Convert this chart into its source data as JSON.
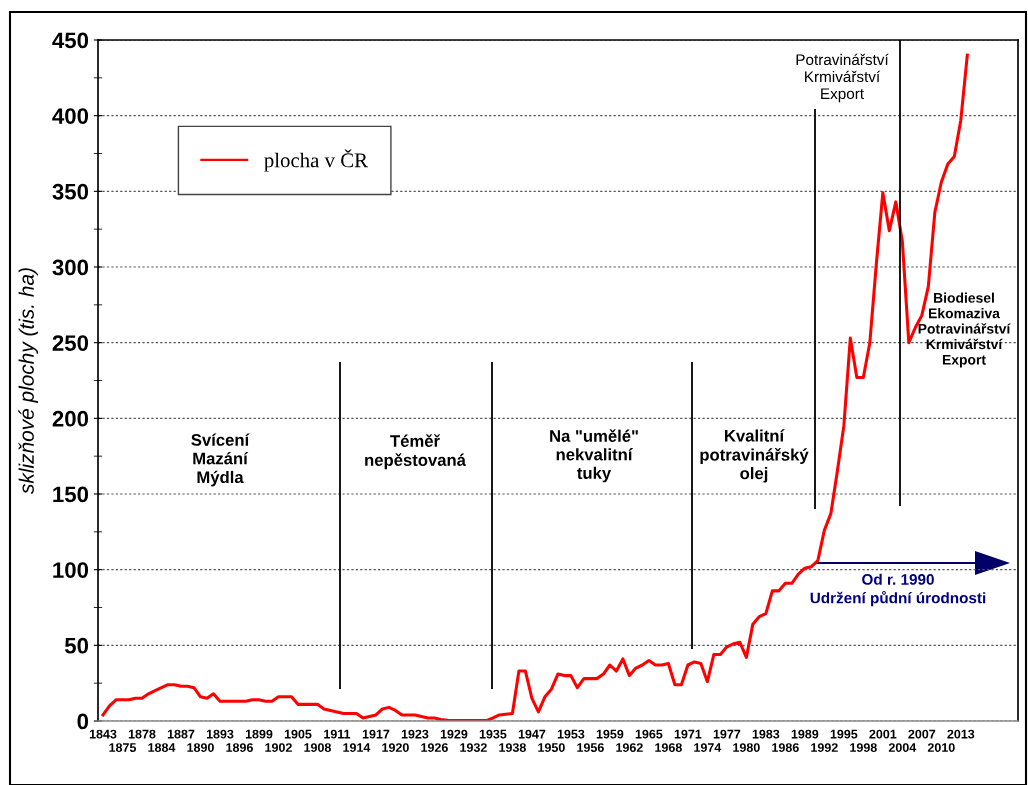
{
  "chart_data": {
    "type": "line",
    "ylabel": "sklizňové plochy (tis. ha)",
    "categories": [
      "1843",
      null,
      null,
      "1875",
      null,
      null,
      "1878",
      null,
      null,
      "1884",
      null,
      null,
      "1887",
      null,
      null,
      "1890",
      null,
      null,
      "1893",
      null,
      null,
      "1896",
      null,
      null,
      "1899",
      null,
      null,
      "1902",
      null,
      null,
      "1905",
      null,
      null,
      "1908",
      null,
      null,
      "1911",
      null,
      null,
      "1914",
      null,
      null,
      "1917",
      null,
      null,
      "1920",
      null,
      null,
      "1923",
      null,
      null,
      "1926",
      null,
      null,
      "1929",
      null,
      null,
      "1932",
      null,
      null,
      "1935",
      null,
      null,
      "1938",
      null,
      null,
      "1947",
      null,
      null,
      "1950",
      null,
      null,
      "1953",
      null,
      null,
      "1956",
      null,
      null,
      "1959",
      null,
      null,
      "1962",
      null,
      null,
      "1965",
      null,
      null,
      "1968",
      null,
      null,
      "1971",
      null,
      null,
      "1974",
      null,
      null,
      "1977",
      null,
      null,
      "1980",
      null,
      null,
      "1983",
      null,
      null,
      "1986",
      null,
      null,
      "1989",
      null,
      null,
      "1992",
      null,
      null,
      "1995",
      null,
      null,
      "1998",
      null,
      null,
      "2001",
      null,
      null,
      "2004",
      null,
      null,
      "2007",
      null,
      null,
      "2010",
      null,
      null,
      "2013",
      null
    ],
    "series": [
      {
        "name": "plocha v ČR",
        "color": "#ff0000",
        "values": [
          4,
          10,
          14,
          14,
          14,
          15,
          15,
          18,
          20,
          22,
          24,
          24,
          23,
          23,
          22,
          16,
          15,
          18,
          13,
          13,
          13,
          13,
          13,
          14,
          14,
          13,
          13,
          16,
          16,
          16,
          11,
          11,
          11,
          11,
          8,
          7,
          6,
          5,
          5,
          5,
          2,
          3,
          4,
          8,
          9,
          7,
          4,
          4,
          4,
          3,
          2,
          2,
          1,
          0.5,
          0.3,
          0.3,
          0.3,
          0.3,
          0.3,
          0.3,
          2,
          4,
          4.5,
          5,
          33,
          33,
          15,
          6,
          16,
          21,
          31,
          30,
          30,
          22,
          28,
          28,
          28,
          31,
          37,
          33,
          41,
          30,
          35,
          37,
          40,
          37,
          37,
          38,
          24,
          24,
          37,
          39,
          38,
          26,
          44,
          44,
          49,
          51,
          52,
          42,
          64,
          69,
          71,
          86,
          86,
          91,
          91,
          97,
          101,
          102,
          106,
          126,
          137,
          165,
          195,
          253,
          227,
          227,
          250,
          302,
          349,
          324,
          343,
          317,
          250,
          260,
          268,
          287,
          336,
          356,
          368,
          373,
          397,
          440
        ]
      }
    ],
    "ylim": [
      0,
      450
    ],
    "yticks": [
      0,
      {
        "value": 25,
        "label": null
      },
      50,
      {
        "value": 75,
        "label": null
      },
      100,
      {
        "value": 125,
        "label": null
      },
      150,
      {
        "value": 175,
        "label": null
      },
      200,
      {
        "value": 225,
        "label": null
      },
      250,
      {
        "value": 275,
        "label": null
      },
      300,
      {
        "value": 325,
        "label": null
      },
      350,
      {
        "value": 375,
        "label": null
      },
      400,
      {
        "value": 425,
        "label": null
      },
      450
    ],
    "grid": "y",
    "legend": "top left",
    "annotations": [
      "Svícení\nMazání\nMýdla",
      "Téměř\nnepěstovaná",
      "Na \"umělé\"\nnekvalitní\ntuky",
      "Kvalitní\npotravinářský\nolej",
      "Potravinářství\nKrmivářství\nExport",
      "Biodiesel\nEkomaziva\nPotravinářství\nKrmivářství\nExport",
      "Od r. 1990\nUdržení půdní úrodnosti"
    ]
  }
}
